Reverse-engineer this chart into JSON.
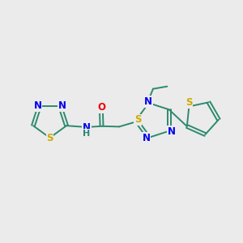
{
  "background_color": "#ebebeb",
  "bond_color": "#2d8a6e",
  "N_color": "#0000ee",
  "S_color": "#ccaa00",
  "O_color": "#ee0000",
  "font_size": 8.5,
  "lw": 1.4,
  "xlim": [
    0,
    10
  ],
  "ylim": [
    0,
    10
  ]
}
